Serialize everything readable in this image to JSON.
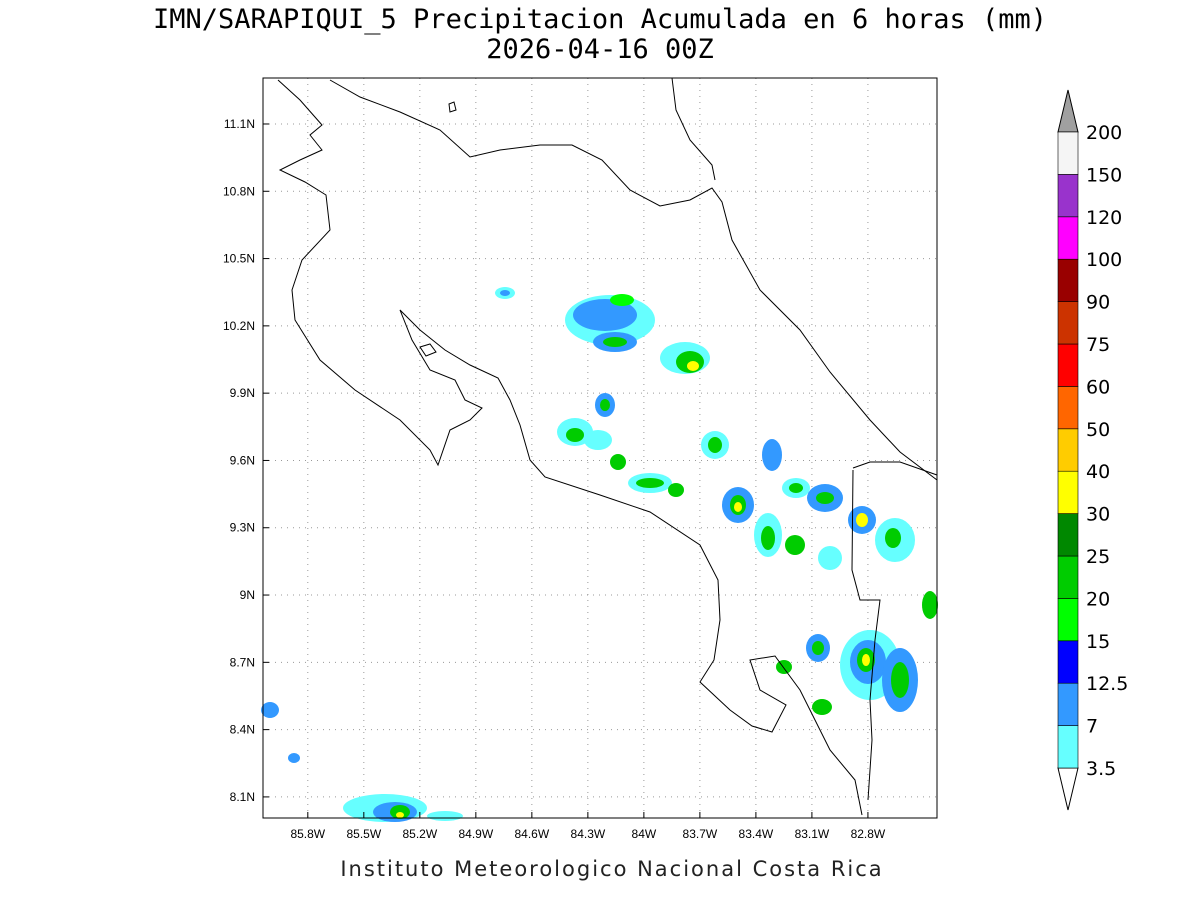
{
  "map": {
    "title": "IMN/SARAPIQUI_5 Precipitacion Acumulada en 6 horas (mm)",
    "subtitle": "2026-04-16 00Z",
    "footer": "Instituto Meteorologico Nacional Costa Rica",
    "lonlim": [
      -86.04,
      -82.43
    ],
    "latlim": [
      8.006,
      11.305
    ],
    "lon_ticks": [
      {
        "value": -85.8,
        "label": "85.8W"
      },
      {
        "value": -85.5,
        "label": "85.5W"
      },
      {
        "value": -85.2,
        "label": "85.2W"
      },
      {
        "value": -84.9,
        "label": "84.9W"
      },
      {
        "value": -84.6,
        "label": "84.6W"
      },
      {
        "value": -84.3,
        "label": "84.3W"
      },
      {
        "value": -84,
        "label": "84W"
      },
      {
        "value": -83.7,
        "label": "83.7W"
      },
      {
        "value": -83.4,
        "label": "83.4W"
      },
      {
        "value": -83.1,
        "label": "83.1W"
      },
      {
        "value": -82.8,
        "label": "82.8W"
      }
    ],
    "lat_ticks": [
      {
        "value": 11.1,
        "label": "11.1N"
      },
      {
        "value": 10.8,
        "label": "10.8N"
      },
      {
        "value": 10.5,
        "label": "10.5N"
      },
      {
        "value": 10.2,
        "label": "10.2N"
      },
      {
        "value": 9.9,
        "label": "9.9N"
      },
      {
        "value": 9.6,
        "label": "9.6N"
      },
      {
        "value": 9.3,
        "label": "9.3N"
      },
      {
        "value": 9,
        "label": "9N"
      },
      {
        "value": 8.7,
        "label": "8.7N"
      },
      {
        "value": 8.4,
        "label": "8.4N"
      },
      {
        "value": 8.1,
        "label": "8.1N"
      }
    ],
    "grid": true,
    "colorbar": {
      "levels": [
        3.5,
        7,
        12.5,
        15,
        20,
        25,
        30,
        40,
        50,
        60,
        75,
        90,
        100,
        120,
        150,
        200
      ],
      "colors": [
        "#66ffff",
        "#3399ff",
        "#0000ff",
        "#00ff00",
        "#00cc00",
        "#008800",
        "#ffff00",
        "#ffcc00",
        "#ff6600",
        "#ff0000",
        "#cc3300",
        "#990000",
        "#ff00ff",
        "#9933cc",
        "#f5f5f5"
      ],
      "under_color": "#ffffff",
      "over_color": "#a0a0a0"
    }
  }
}
